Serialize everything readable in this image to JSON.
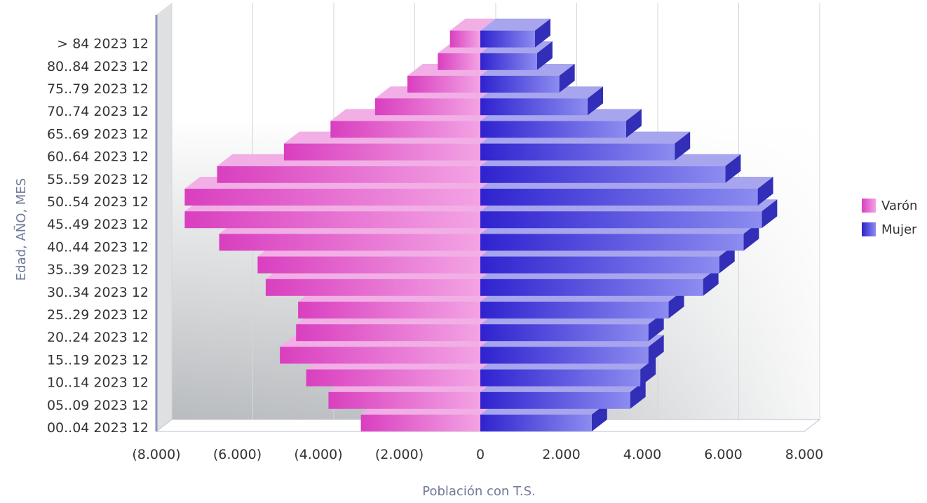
{
  "chart_data": {
    "type": "bar",
    "orientation": "horizontal",
    "style": "population-pyramid-3d",
    "categories": [
      "00..04 2023 12",
      "05..09 2023 12",
      "10..14 2023 12",
      "15..19 2023 12",
      "20..24 2023 12",
      "25..29 2023 12",
      "30..34 2023 12",
      "35..39 2023 12",
      "40..44 2023 12",
      "45..49 2023 12",
      "50..54 2023 12",
      "55..59 2023 12",
      "60..64 2023 12",
      "65..69 2023 12",
      "70..74 2023 12",
      "75..79 2023 12",
      "80..84 2023 12",
      "> 84 2023 12"
    ],
    "series": [
      {
        "name": "Varón",
        "color": "#e04ec8",
        "values": [
          -2950,
          -3750,
          -4300,
          -4950,
          -4550,
          -4500,
          -5300,
          -5500,
          -6450,
          -7300,
          -7300,
          -6500,
          -4850,
          -3700,
          -2600,
          -1800,
          -1050,
          -750
        ]
      },
      {
        "name": "Mujer",
        "color": "#3b36d8",
        "values": [
          2750,
          3700,
          3950,
          4150,
          4150,
          4650,
          5500,
          5900,
          6500,
          6950,
          6850,
          6050,
          4800,
          3600,
          2650,
          1950,
          1400,
          1350
        ]
      }
    ],
    "xlim": [
      -8000,
      8000
    ],
    "x_ticks": [
      -8000,
      -6000,
      -4000,
      -2000,
      0,
      2000,
      4000,
      6000,
      8000
    ],
    "x_tick_labels": [
      "(8.000)",
      "(6.000)",
      "(4.000)",
      "(2.000)",
      "0",
      "2.000",
      "4.000",
      "6.000",
      "8.000"
    ],
    "xlabel": "Población con T.S.",
    "ylabel": "Edad, AÑO, MES",
    "title": "",
    "grid": true,
    "legend_position": "right"
  }
}
